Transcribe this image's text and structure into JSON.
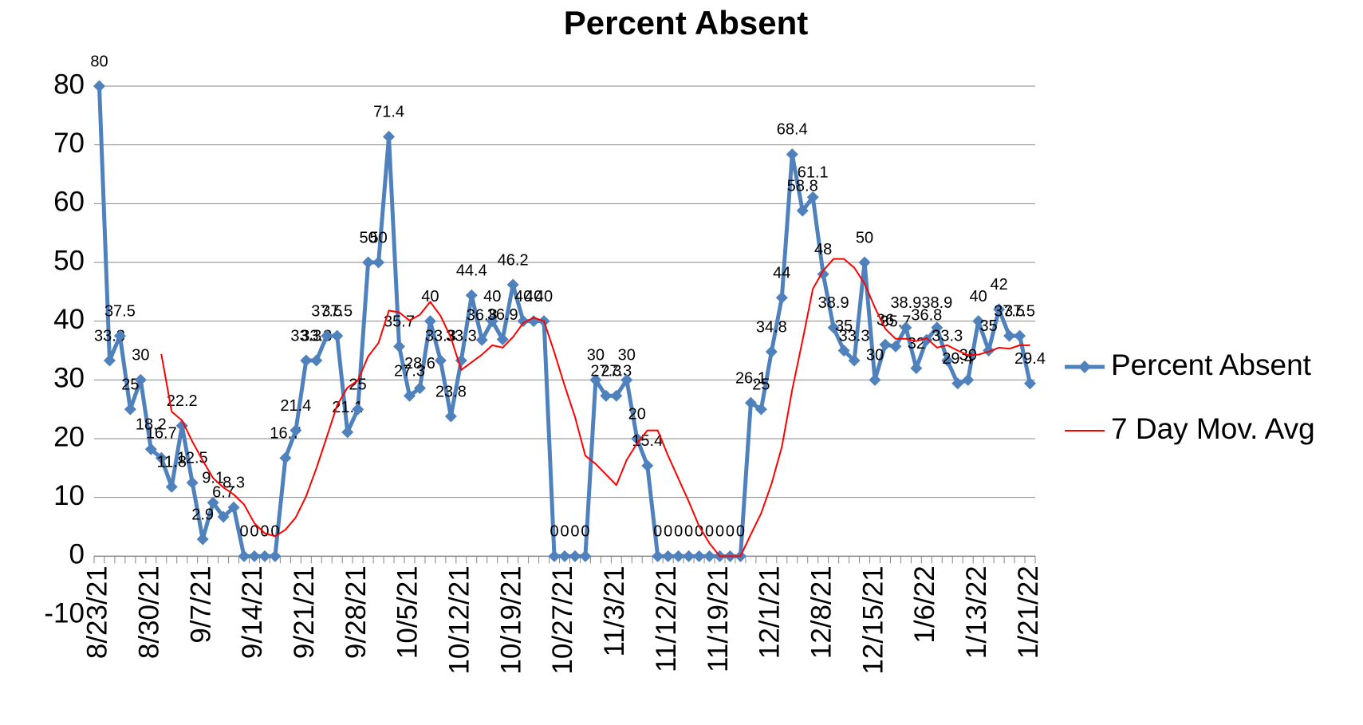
{
  "chart_data": {
    "type": "line",
    "title": "Percent Absent",
    "categories": [
      "8/23/21",
      null,
      null,
      null,
      null,
      "8/30/21",
      null,
      null,
      null,
      null,
      "9/7/21",
      null,
      null,
      null,
      null,
      "9/14/21",
      null,
      null,
      null,
      null,
      "9/21/21",
      null,
      null,
      null,
      null,
      "9/28/21",
      null,
      null,
      null,
      null,
      "10/5/21",
      null,
      null,
      null,
      null,
      "10/12/21",
      null,
      null,
      null,
      null,
      "10/19/21",
      null,
      null,
      null,
      null,
      "10/27/21",
      null,
      null,
      null,
      null,
      "11/3/21",
      null,
      null,
      null,
      null,
      "11/12/21",
      null,
      null,
      null,
      null,
      "11/19/21",
      null,
      null,
      null,
      null,
      "12/1/21",
      null,
      null,
      null,
      null,
      "12/8/21",
      null,
      null,
      null,
      null,
      "12/15/21",
      null,
      null,
      null,
      null,
      "1/6/22",
      null,
      null,
      null,
      null,
      "1/13/22",
      null,
      null,
      null,
      null,
      "1/21/22"
    ],
    "series": [
      {
        "name": "Percent Absent",
        "color": "#4f81bd",
        "marker": "diamond",
        "show_labels": true,
        "values": [
          80,
          33.3,
          37.5,
          25,
          30,
          18.2,
          16.7,
          11.8,
          22.2,
          12.5,
          2.9,
          9.1,
          6.7,
          8.3,
          0,
          0,
          0,
          0,
          16.7,
          21.4,
          33.3,
          33.3,
          37.5,
          37.5,
          21.1,
          25,
          50,
          50,
          71.4,
          35.7,
          27.3,
          28.6,
          40,
          33.3,
          23.8,
          33.3,
          44.4,
          36.8,
          40,
          36.9,
          46.2,
          40,
          40,
          40,
          0,
          0,
          0,
          0,
          30,
          27.3,
          27.3,
          30,
          20,
          15.4,
          0,
          0,
          0,
          0,
          0,
          0,
          0,
          0,
          0,
          26.1,
          25,
          34.8,
          44,
          68.4,
          58.8,
          61.1,
          48,
          38.9,
          35,
          33.3,
          50,
          30,
          36,
          35.7,
          38.9,
          32,
          36.8,
          38.9,
          33.3,
          29.4,
          30,
          40,
          35,
          42,
          37.5,
          37.5,
          29.4
        ]
      },
      {
        "name": "7 Day Mov. Avg",
        "color": "#ff0000",
        "marker": "none",
        "show_labels": false,
        "values": [
          null,
          null,
          null,
          null,
          null,
          null,
          34.4,
          24.6,
          23.1,
          19.5,
          16.3,
          13.3,
          11.7,
          10.5,
          8.8,
          5.6,
          3.9,
          3.4,
          4.5,
          6.6,
          10.2,
          15.0,
          20.3,
          25.7,
          28.7,
          29.9,
          34.0,
          36.3,
          41.8,
          41.5,
          40.1,
          41.1,
          43.3,
          40.9,
          37.2,
          31.7,
          33.0,
          34.3,
          35.9,
          35.5,
          37.3,
          39.7,
          40.6,
          40.0,
          34.7,
          29.0,
          23.7,
          17.1,
          15.7,
          13.9,
          12.1,
          16.4,
          19.2,
          21.4,
          21.4,
          17.1,
          13.2,
          9.3,
          5.1,
          2.2,
          0,
          0,
          0,
          3.7,
          7.3,
          12.3,
          18.6,
          28.3,
          36.7,
          45.5,
          48.6,
          50.6,
          50.6,
          49.1,
          46.4,
          42.3,
          38.7,
          37.0,
          37.0,
          36.6,
          37.1,
          35.5,
          35.9,
          35.0,
          34.2,
          34.3,
          34.8,
          35.5,
          35.3,
          35.9,
          35.9
        ]
      }
    ],
    "ylim": [
      -10,
      80
    ],
    "yticks": [
      -10,
      0,
      10,
      20,
      30,
      40,
      50,
      60,
      70,
      80
    ],
    "grid": true,
    "legend": "right"
  }
}
